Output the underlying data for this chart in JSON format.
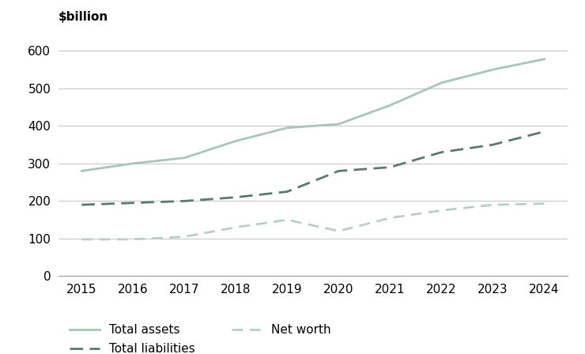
{
  "years": [
    2015,
    2016,
    2017,
    2018,
    2019,
    2020,
    2021,
    2022,
    2023,
    2024
  ],
  "total_assets": [
    280,
    300,
    315,
    360,
    395,
    405,
    455,
    515,
    550,
    578
  ],
  "total_liabilities": [
    190,
    195,
    200,
    210,
    225,
    280,
    290,
    330,
    350,
    385
  ],
  "net_worth": [
    98,
    98,
    105,
    130,
    150,
    120,
    155,
    175,
    190,
    193
  ],
  "assets_color": "#a8c5b5",
  "liabilities_color": "#5a7a6a",
  "networth_color": "#b8cfc5",
  "ylabel": "$billion",
  "ylim": [
    0,
    660
  ],
  "yticks": [
    0,
    100,
    200,
    300,
    400,
    500,
    600
  ],
  "legend_assets": "Total assets",
  "legend_liabilities": "Total liabilities",
  "legend_networth": "Net worth",
  "background_color": "#ffffff",
  "grid_color": "#c8c8c8",
  "axis_fontsize": 11,
  "label_fontsize": 11,
  "legend_fontsize": 11
}
